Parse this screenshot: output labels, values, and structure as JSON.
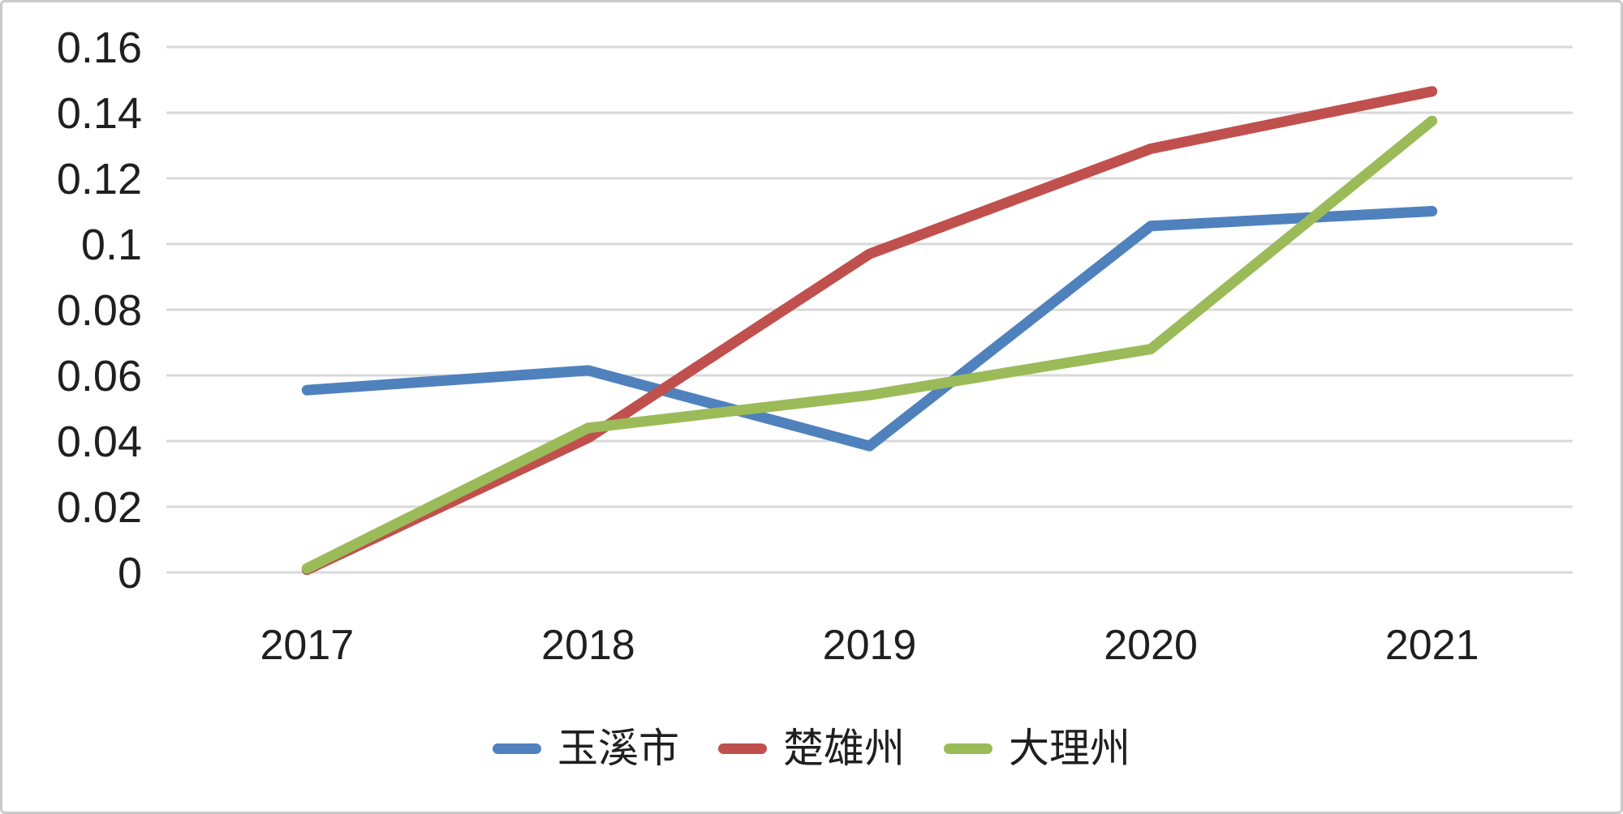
{
  "chart_data": {
    "type": "line",
    "title": "",
    "xlabel": "",
    "ylabel": "",
    "categories": [
      "2017",
      "2018",
      "2019",
      "2020",
      "2021"
    ],
    "series": [
      {
        "name": "玉溪市",
        "color": "#4F81BD",
        "values": [
          0.0555,
          0.0615,
          0.0385,
          0.1055,
          0.11
        ]
      },
      {
        "name": "楚雄州",
        "color": "#C0504D",
        "values": [
          0.0008,
          0.041,
          0.097,
          0.129,
          0.1465
        ]
      },
      {
        "name": "大理州",
        "color": "#9BBB59",
        "values": [
          0.0012,
          0.044,
          0.054,
          0.068,
          0.1375
        ]
      }
    ],
    "ylim": [
      0,
      0.16
    ],
    "ytick_step": 0.02,
    "ytick_labels": [
      "0",
      "0.02",
      "0.04",
      "0.06",
      "0.08",
      "0.1",
      "0.12",
      "0.14",
      "0.16"
    ],
    "grid": true,
    "legend_position": "bottom"
  },
  "styles": {
    "grid_color": "#D9D9D9",
    "text_color": "#1F1F1F",
    "background": "#FFFFFF",
    "border_color": "#C9C9C9"
  }
}
